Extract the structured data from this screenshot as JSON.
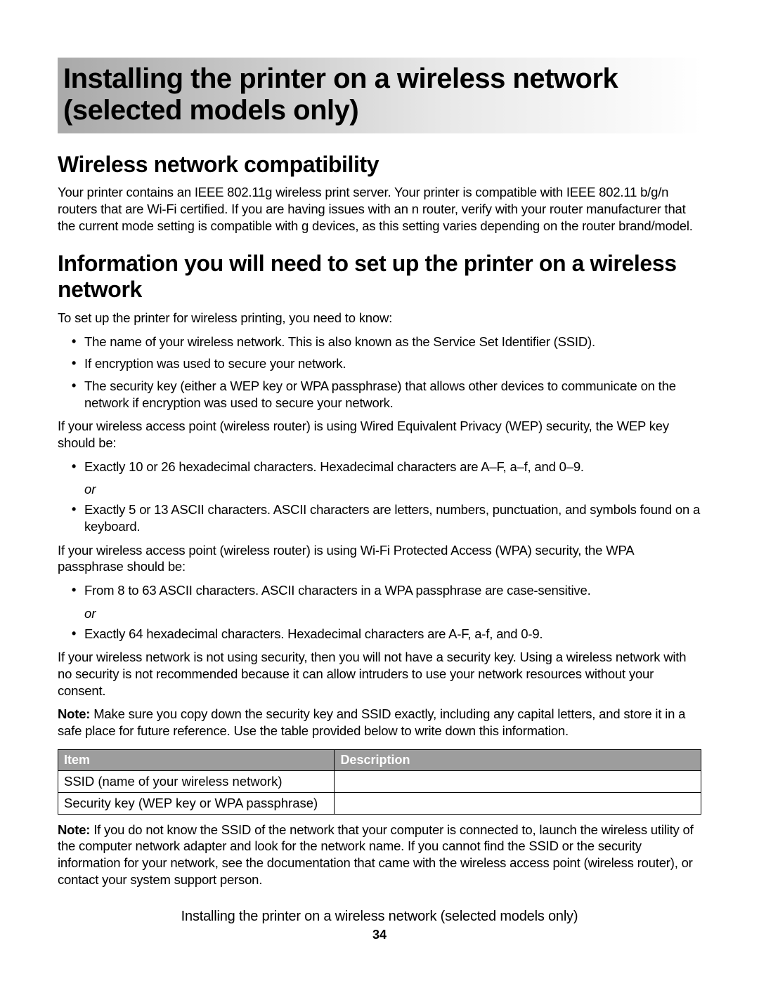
{
  "chapter": {
    "title": "Installing the printer on a wireless network (selected models only)"
  },
  "sections": {
    "compat": {
      "heading": "Wireless network compatibility",
      "body": "Your printer contains an IEEE 802.11g wireless print server. Your printer is compatible with IEEE 802.11 b/g/n routers that are Wi-Fi certified. If you are having issues with an n router, verify with your router manufacturer that the current mode setting is compatible with g devices, as this setting varies depending on the router brand/model."
    },
    "info": {
      "heading": "Information you will need to set up the printer on a wireless network",
      "intro": "To set up the printer for wireless printing, you need to know:",
      "bullets1": [
        "The name of your wireless network. This is also known as the Service Set Identifier (SSID).",
        "If encryption was used to secure your network.",
        "The security key (either a WEP key or WPA passphrase) that allows other devices to communicate on the network if encryption was used to secure your network."
      ],
      "wep_intro": "If your wireless access point (wireless router) is using Wired Equivalent Privacy (WEP) security, the WEP key should be:",
      "wep_b1": "Exactly 10 or 26 hexadecimal characters. Hexadecimal characters are A–F, a–f, and 0–9.",
      "or": "or",
      "wep_b2": "Exactly 5 or 13 ASCII characters. ASCII characters are letters, numbers, punctuation, and symbols found on a keyboard.",
      "wpa_intro": "If your wireless access point (wireless router) is using Wi-Fi Protected Access (WPA) security, the WPA passphrase should be:",
      "wpa_b1": "From 8 to 63 ASCII characters. ASCII characters in a WPA passphrase are case-sensitive.",
      "wpa_b2": "Exactly 64 hexadecimal characters. Hexadecimal characters are A-F, a-f, and 0-9.",
      "nosec": "If your wireless network is not using security, then you will not have a security key. Using a wireless network with no security is not recommended because it can allow intruders to use your network resources without your consent.",
      "note1_label": "Note:",
      "note1_body": " Make sure you copy down the security key and SSID exactly, including any capital letters, and store it in a safe place for future reference. Use the table provided below to write down this information.",
      "table": {
        "headers": [
          "Item",
          "Description"
        ],
        "rows": [
          [
            "SSID (name of your wireless network)",
            ""
          ],
          [
            "Security key (WEP key or WPA passphrase)",
            ""
          ]
        ]
      },
      "note2_label": "Note:",
      "note2_body": " If you do not know the SSID of the network that your computer is connected to, launch the wireless utility of the computer network adapter and look for the network name. If you cannot find the SSID or the security information for your network, see the documentation that came with the wireless access point (wireless router), or contact your system support person."
    }
  },
  "footer": {
    "title": "Installing the printer on a wireless network (selected models only)",
    "page": "34"
  }
}
